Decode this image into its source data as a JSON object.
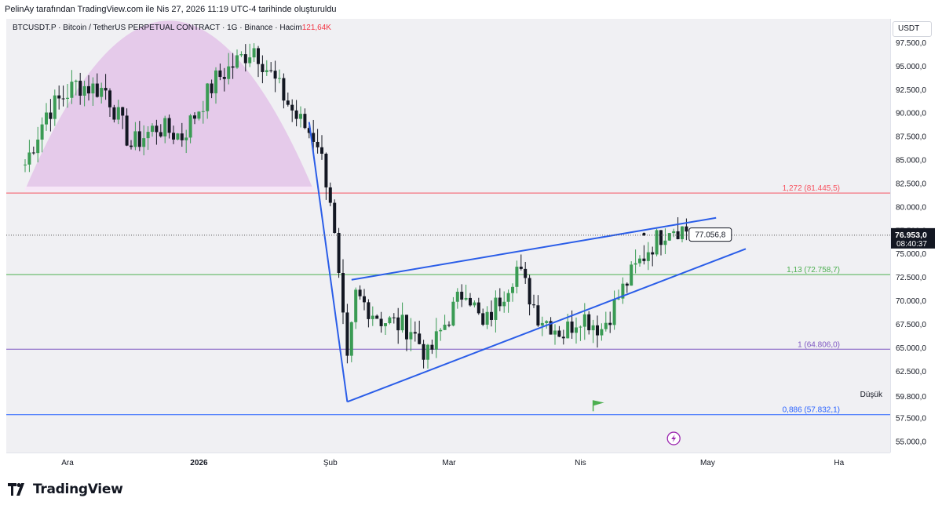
{
  "caption": "PelinAy tarafından TradingView.com ile Nis 27, 2026 11:19 UTC-4 tarihinde oluşturuldu",
  "legend": {
    "symbol": "BTCUSDT.P",
    "description": "Bitcoin / TetherUS PERPETUAL CONTRACT",
    "interval": "1G",
    "exchange": "Binance",
    "volume_label": "Hacim",
    "volume_value": "121,64K",
    "separator": "·"
  },
  "currency": "USDT",
  "branding": "TradingView",
  "last_price": {
    "price": "76.953,0",
    "countdown": "08:40:37"
  },
  "price_callout": "77.056,8",
  "low_label": "Düşük",
  "colors": {
    "up": "#22ab94",
    "down": "#131722",
    "up_body": "#3a9b54",
    "trend": "#2a5de8",
    "fib_1272": "#f7525f",
    "fib_113": "#4caf50",
    "fib_1": "#7e57c2",
    "fib_0886": "#2962ff",
    "arc_fill": "#e1bee7"
  },
  "chart_data": {
    "type": "candlestick",
    "y_axis": {
      "min": 53800,
      "max": 100000,
      "tick_labels": [
        "97.500,0",
        "95.000,0",
        "92.500,0",
        "90.000,0",
        "87.500,0",
        "85.000,0",
        "82.500,0",
        "80.000,0",
        "77.500,0",
        "75.000,0",
        "72.500,0",
        "70.000,0",
        "67.500,0",
        "65.000,0",
        "62.500,0",
        "59.800,0",
        "57.500,0",
        "55.000,0"
      ],
      "tick_values": [
        97500,
        95000,
        92500,
        90000,
        87500,
        85000,
        82500,
        80000,
        77500,
        75000,
        72500,
        70000,
        67500,
        65000,
        62500,
        59800,
        57500,
        55000
      ]
    },
    "x_axis": {
      "tick_labels": [
        "Ara",
        "2026",
        "Şub",
        "Mar",
        "Nis",
        "May",
        "Ha"
      ],
      "tick_positions": [
        "2025-12-01",
        "2026-01-01",
        "2026-02-01",
        "2026-03-01",
        "2026-04-01",
        "2026-05-01",
        "2026-06-01"
      ]
    },
    "fib_levels": [
      {
        "label": "1,272 (81.445,5)",
        "value": 81445.5,
        "color": "fib_1272"
      },
      {
        "label": "1,13 (72.758,7)",
        "value": 72758.7,
        "color": "fib_113"
      },
      {
        "label": "1 (64.806,0)",
        "value": 64806.0,
        "color": "fib_1"
      },
      {
        "label": "0,886 (57.832,1)",
        "value": 57832.1,
        "color": "fib_0886"
      }
    ],
    "anchors": [
      {
        "date": "2025-11-21",
        "close": 84500
      },
      {
        "date": "2025-11-26",
        "close": 90000
      },
      {
        "date": "2025-12-03",
        "close": 93000
      },
      {
        "date": "2025-12-10",
        "close": 92400
      },
      {
        "date": "2025-12-16",
        "close": 86500
      },
      {
        "date": "2025-12-22",
        "close": 88500
      },
      {
        "date": "2025-12-28",
        "close": 87500
      },
      {
        "date": "2026-01-05",
        "close": 93500
      },
      {
        "date": "2026-01-14",
        "close": 97000
      },
      {
        "date": "2026-01-20",
        "close": 92500
      },
      {
        "date": "2026-01-24",
        "close": 89500
      },
      {
        "date": "2026-01-29",
        "close": 87000
      },
      {
        "date": "2026-02-01",
        "close": 81000
      },
      {
        "date": "2026-02-05",
        "close": 63000
      },
      {
        "date": "2026-02-07",
        "close": 70500
      },
      {
        "date": "2026-02-13",
        "close": 68000
      },
      {
        "date": "2026-02-20",
        "close": 67000
      },
      {
        "date": "2026-02-24",
        "close": 64000
      },
      {
        "date": "2026-02-28",
        "close": 67500
      },
      {
        "date": "2026-03-05",
        "close": 71500
      },
      {
        "date": "2026-03-09",
        "close": 67000
      },
      {
        "date": "2026-03-17",
        "close": 73500
      },
      {
        "date": "2026-03-22",
        "close": 68500
      },
      {
        "date": "2026-03-28",
        "close": 66500
      },
      {
        "date": "2026-04-01",
        "close": 68500
      },
      {
        "date": "2026-04-06",
        "close": 67000
      },
      {
        "date": "2026-04-12",
        "close": 72000
      },
      {
        "date": "2026-04-17",
        "close": 75500
      },
      {
        "date": "2026-04-22",
        "close": 78000
      },
      {
        "date": "2026-04-26",
        "close": 77500
      },
      {
        "date": "2026-04-27",
        "close": 76953
      }
    ],
    "trendlines": [
      {
        "from": {
          "date": "2026-01-27",
          "value": 89000
        },
        "to": {
          "date": "2026-02-05",
          "value": 59200
        }
      },
      {
        "from": {
          "date": "2026-02-06",
          "value": 72200
        },
        "to": {
          "date": "2026-05-03",
          "value": 78800
        }
      },
      {
        "from": {
          "date": "2026-02-05",
          "value": 59200
        },
        "to": {
          "date": "2026-05-10",
          "value": 75500
        }
      }
    ],
    "price_line": 76953,
    "callout_value": 77056.8,
    "low_value": 60000,
    "arc": {
      "from": "2025-11-21",
      "to": "2026-01-28",
      "peak": 99800,
      "base": 81800
    }
  }
}
